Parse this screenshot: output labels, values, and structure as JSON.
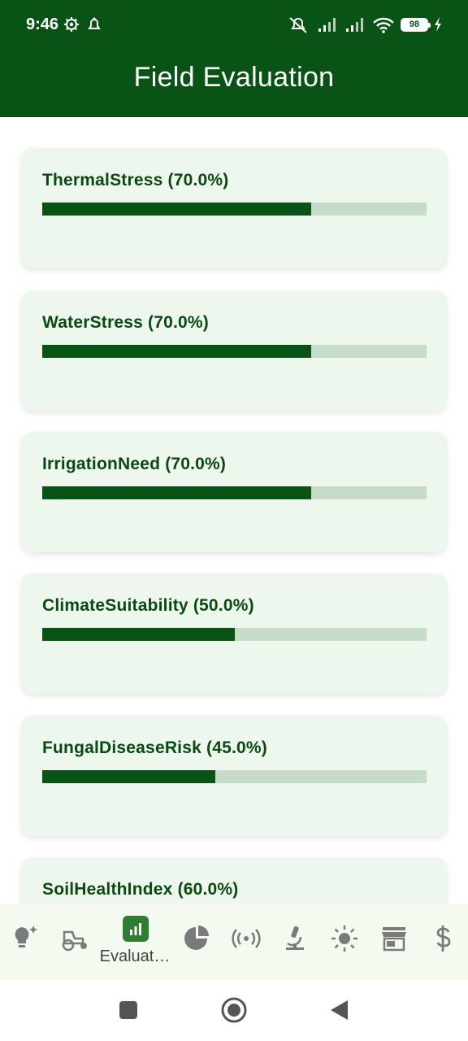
{
  "status_bar": {
    "time": "9:46",
    "battery": "98"
  },
  "app_bar": {
    "title": "Field Evaluation"
  },
  "cards": [
    {
      "label": "ThermalStress (70.0%)",
      "value": 0.7
    },
    {
      "label": "WaterStress (70.0%)",
      "value": 0.7
    },
    {
      "label": "IrrigationNeed (70.0%)",
      "value": 0.7
    },
    {
      "label": "ClimateSuitability (50.0%)",
      "value": 0.5
    },
    {
      "label": "FungalDiseaseRisk (45.0%)",
      "value": 0.45
    },
    {
      "label": "SoilHealthIndex (60.0%)",
      "value": 0.6
    }
  ],
  "bottom_nav": {
    "items": [
      {
        "icon": "lightbulb-sparkle-icon"
      },
      {
        "icon": "tractor-icon"
      },
      {
        "icon": "bar-chart-icon",
        "label": "Evaluat…",
        "active": true
      },
      {
        "icon": "pie-chart-icon"
      },
      {
        "icon": "sensor-signal-icon"
      },
      {
        "icon": "microscope-icon"
      },
      {
        "icon": "sun-icon"
      },
      {
        "icon": "store-icon"
      },
      {
        "icon": "dollar-icon"
      }
    ]
  },
  "colors": {
    "primary": "#0a5316",
    "card_background": "#eef7ee",
    "track": "#c6dcc9",
    "label_text": "#0a4a12",
    "nav_background": "#f5faf0",
    "nav_icon": "#7a7a7a"
  }
}
